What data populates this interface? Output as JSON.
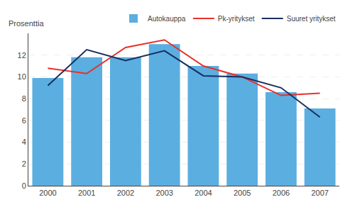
{
  "chart_data": {
    "type": "bar",
    "ylabel": "Prosenttia",
    "categories": [
      "2000",
      "2001",
      "2002",
      "2003",
      "2004",
      "2005",
      "2006",
      "2007"
    ],
    "series": [
      {
        "name": "Autokauppa",
        "type": "bar",
        "color": "#5baee0",
        "values": [
          9.9,
          11.8,
          11.8,
          13.0,
          11.0,
          10.3,
          8.6,
          7.1
        ]
      },
      {
        "name": "Pk-yritykset",
        "type": "line",
        "color": "#e8302a",
        "values": [
          10.8,
          10.3,
          12.7,
          13.4,
          11.0,
          10.0,
          8.3,
          8.5
        ]
      },
      {
        "name": "Suuret yritykset",
        "type": "line",
        "color": "#1a2e60",
        "values": [
          9.2,
          12.5,
          11.5,
          12.4,
          10.1,
          10.0,
          9.0,
          6.3
        ]
      }
    ],
    "ylim": [
      0,
      14
    ],
    "yticks": [
      0,
      2,
      4,
      6,
      8,
      10,
      12
    ],
    "grid": true,
    "legend": "upper right"
  }
}
